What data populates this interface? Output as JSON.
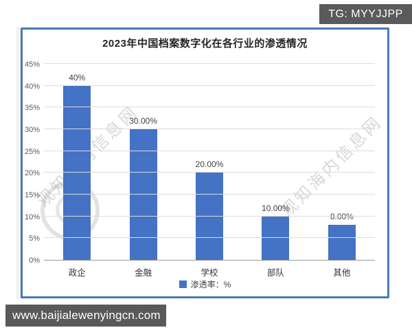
{
  "overlays": {
    "tg_badge": "TG: MYYJJPP",
    "url_badge": "www.baijialewenyingcn.com"
  },
  "watermark": {
    "text": "观知海内信息网"
  },
  "chart_data": {
    "type": "bar",
    "title": "2023年中国档案数字化在各行业的渗透情况",
    "categories": [
      "政企",
      "金融",
      "学校",
      "部队",
      "其他"
    ],
    "values": [
      40,
      30,
      20,
      10,
      8
    ],
    "data_labels": [
      "40%",
      "30.00%",
      "20.00%",
      "10.00%",
      "8.00%"
    ],
    "series_name": "渗透率：%",
    "legend": [
      "渗透率：%"
    ],
    "legend_position": "bottom",
    "xlabel": "",
    "ylabel": "",
    "ylim": [
      0,
      45
    ],
    "ytick_step": 5,
    "ytick_labels": [
      "0%",
      "5%",
      "10%",
      "15%",
      "20%",
      "25%",
      "30%",
      "35%",
      "40%",
      "45%"
    ],
    "grid": true,
    "bar_color": "#4472C4",
    "gridline_color": "#dcdcdc",
    "axis_line_color": "#9a9a9a"
  }
}
